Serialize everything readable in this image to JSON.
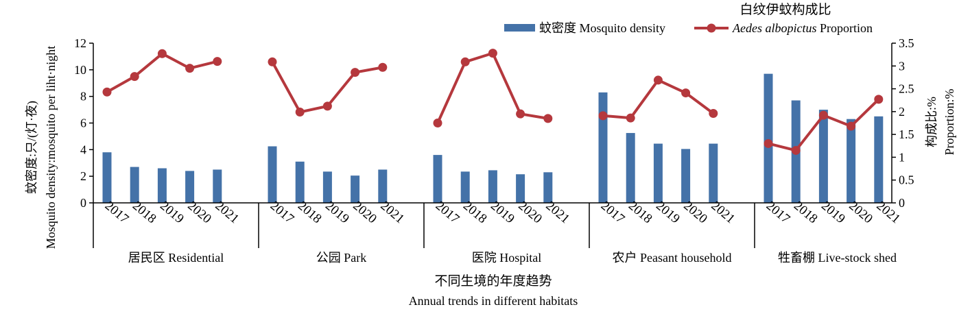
{
  "chart_data": {
    "type": "bar+line",
    "groups": [
      {
        "label": "居民区 Residential",
        "years": [
          "2017",
          "2018",
          "2019",
          "2020",
          "2021"
        ],
        "density": [
          3.8,
          2.7,
          2.6,
          2.4,
          2.5
        ],
        "proportion": [
          2.43,
          2.77,
          3.27,
          2.95,
          3.1
        ]
      },
      {
        "label": "公园 Park",
        "years": [
          "2017",
          "2018",
          "2019",
          "2020",
          "2021"
        ],
        "density": [
          4.25,
          3.1,
          2.35,
          2.05,
          2.5
        ],
        "proportion": [
          3.09,
          1.99,
          2.12,
          2.86,
          2.97
        ]
      },
      {
        "label": "医院 Hospital",
        "years": [
          "2017",
          "2018",
          "2019",
          "2020",
          "2021"
        ],
        "density": [
          3.6,
          2.35,
          2.45,
          2.15,
          2.3
        ],
        "proportion": [
          1.75,
          3.09,
          3.28,
          1.95,
          1.85
        ]
      },
      {
        "label": "农户 Peasant household",
        "years": [
          "2017",
          "2018",
          "2019",
          "2020",
          "2021"
        ],
        "density": [
          8.3,
          5.25,
          4.45,
          4.05,
          4.45
        ],
        "proportion": [
          1.91,
          1.86,
          2.69,
          2.41,
          1.96
        ]
      },
      {
        "label": "牲畜棚 Live-stock shed",
        "years": [
          "2017",
          "2018",
          "2019",
          "2020",
          "2021"
        ],
        "density": [
          9.7,
          7.7,
          7.0,
          6.3,
          6.5
        ],
        "proportion": [
          1.3,
          1.15,
          1.92,
          1.68,
          2.27
        ]
      }
    ],
    "legend": {
      "bar": "蚊密度 Mosquito density",
      "line_prefix": "白纹伊蚊构成比",
      "line_italic": "Aedes albopictus",
      "line_suffix": " Proportion"
    },
    "y_left": {
      "label_cn": "蚊密度:只/(灯·夜)",
      "label_en": "Mosquito density:mosquito per liht·night",
      "ticks": [
        "0",
        "2",
        "4",
        "6",
        "8",
        "10",
        "12"
      ],
      "min": 0,
      "max": 12
    },
    "y_right": {
      "label_cn": "构成比:%",
      "label_en": "Proportion:%",
      "ticks": [
        "0",
        "0.5",
        "1",
        "1.5",
        "2",
        "2.5",
        "3",
        "3.5"
      ],
      "min": 0,
      "max": 3.5
    },
    "x_title_cn": "不同生境的年度趋势",
    "x_title_en": "Annual trends in different habitats",
    "colors": {
      "bar": "#4472A8",
      "line": "#B5383D"
    }
  }
}
